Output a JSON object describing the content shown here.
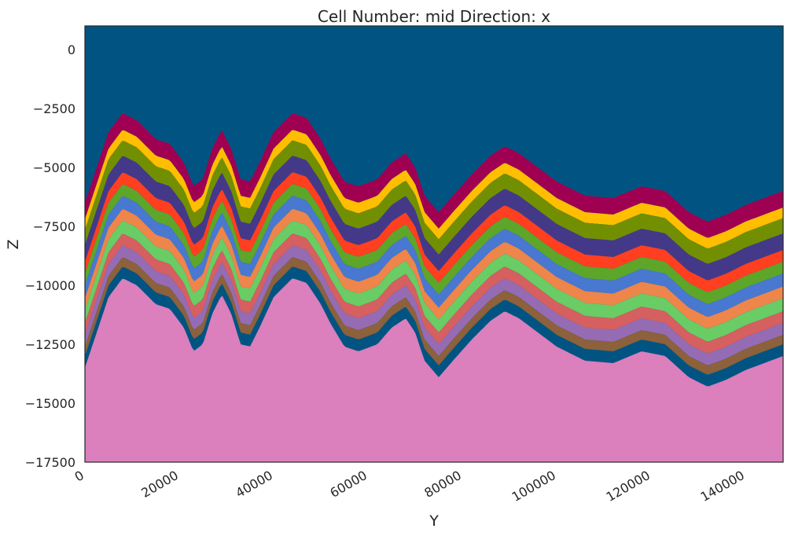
{
  "chart_data": {
    "type": "area",
    "title": "Cell Number: mid Direction: x",
    "xlabel": "Y",
    "ylabel": "Z",
    "xlim": [
      0,
      148000
    ],
    "ylim": [
      -17500,
      1000
    ],
    "x_ticks": [
      0,
      20000,
      40000,
      60000,
      80000,
      100000,
      120000,
      140000
    ],
    "x_tick_labels": [
      "0",
      "20000",
      "40000",
      "60000",
      "80000",
      "100000",
      "120000",
      "140000"
    ],
    "y_ticks": [
      0,
      -2500,
      -5000,
      -7500,
      -10000,
      -12500,
      -15000,
      -17500
    ],
    "y_tick_labels": [
      "0",
      "−2500",
      "−5000",
      "−7500",
      "−10000",
      "−12500",
      "−15000",
      "−17500"
    ],
    "grid": false,
    "background_color": "#015482",
    "basement_color": "#db7fbd",
    "top_surface": {
      "x": [
        0,
        5000,
        8000,
        11000,
        15000,
        18000,
        21000,
        23000,
        25000,
        27000,
        29000,
        31000,
        33000,
        35000,
        37000,
        40000,
        44000,
        47000,
        50000,
        52000,
        55000,
        58000,
        62000,
        65000,
        68000,
        70000,
        72000,
        75000,
        78000,
        82000,
        86000,
        89000,
        92000,
        96000,
        100000,
        106000,
        112000,
        118000,
        123000,
        128000,
        132000,
        136000,
        140000,
        144000,
        148000
      ],
      "z": [
        -6500,
        -3500,
        -2700,
        -3000,
        -3800,
        -4000,
        -4800,
        -5800,
        -5500,
        -4200,
        -3400,
        -4200,
        -5500,
        -5600,
        -4800,
        -3500,
        -2700,
        -2900,
        -3800,
        -4600,
        -5600,
        -5800,
        -5500,
        -4800,
        -4400,
        -5000,
        -6200,
        -6900,
        -6200,
        -5300,
        -4500,
        -4100,
        -4400,
        -5000,
        -5600,
        -6200,
        -6300,
        -5800,
        -6000,
        -6900,
        -7300,
        -7000,
        -6600,
        -6300,
        -6000
      ]
    },
    "layer_thicknesses": [
      700,
      450,
      650,
      700,
      500,
      500,
      550,
      500,
      550,
      500,
      500,
      400,
      500
    ],
    "layer_colors": [
      "#9f0052",
      "#ffbe00",
      "#728f02",
      "#443988",
      "#ff3f20",
      "#5da629",
      "#4878d0",
      "#ee854a",
      "#6acc64",
      "#d65f5f",
      "#956cb4",
      "#8c613c"
    ]
  }
}
